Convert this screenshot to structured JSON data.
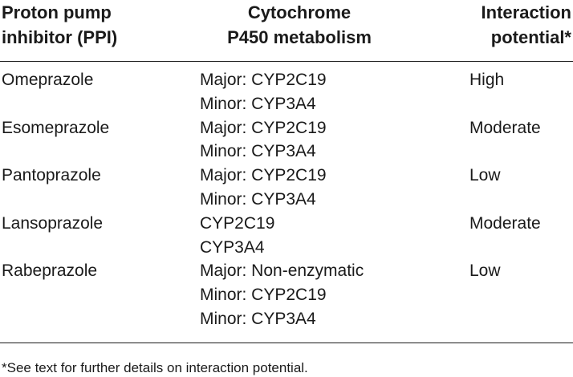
{
  "table": {
    "headers": {
      "ppi": [
        "Proton pump",
        "inhibitor (PPI)"
      ],
      "cyp": [
        "Cytochrome",
        "P450 metabolism"
      ],
      "interaction": [
        "Interaction",
        "potential*"
      ]
    },
    "rows": [
      {
        "ppi": "Omeprazole",
        "cyp": [
          "Major: CYP2C19",
          "Minor: CYP3A4"
        ],
        "interaction": "High"
      },
      {
        "ppi": "Esomeprazole",
        "cyp": [
          "Major: CYP2C19",
          "Minor: CYP3A4"
        ],
        "interaction": "Moderate"
      },
      {
        "ppi": "Pantoprazole",
        "cyp": [
          "Major: CYP2C19",
          "Minor: CYP3A4"
        ],
        "interaction": "Low"
      },
      {
        "ppi": "Lansoprazole",
        "cyp": [
          "CYP2C19",
          "CYP3A4"
        ],
        "interaction": "Moderate"
      },
      {
        "ppi": "Rabeprazole",
        "cyp": [
          "Major: Non-enzymatic",
          "Minor: CYP2C19",
          "Minor: CYP3A4"
        ],
        "interaction": "Low"
      }
    ],
    "footnote": "*See text for further details on interaction potential."
  }
}
